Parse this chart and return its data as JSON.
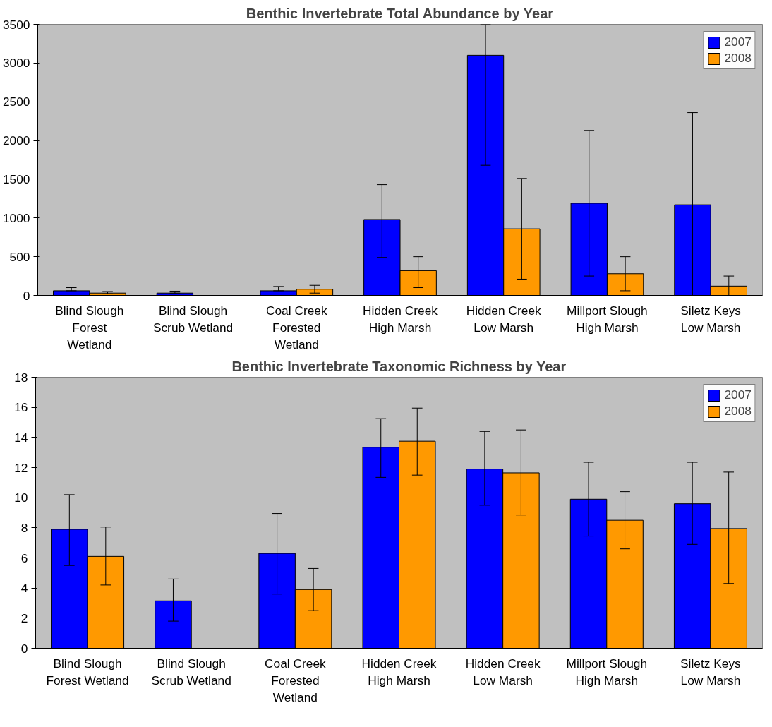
{
  "chart_data": [
    {
      "type": "bar",
      "title": "Benthic Invertebrate Total Abundance by Year",
      "categories": [
        "Blind Slough\nForest\nWetland",
        "Blind Slough\nScrub Wetland",
        "Coal Creek\nForested\nWetland",
        "Hidden Creek\nHigh Marsh",
        "Hidden Creek\nLow Marsh",
        "Millport Slough\nHigh Marsh",
        "Siletz Keys\nLow Marsh"
      ],
      "series": [
        {
          "name": "2007",
          "color": "#0000ff",
          "values": [
            60,
            30,
            60,
            980,
            3100,
            1190,
            1170
          ],
          "errors": [
            [
              60,
              100
            ],
            [
              30,
              55
            ],
            [
              60,
              115
            ],
            [
              490,
              1430
            ],
            [
              1680,
              3500
            ],
            [
              250,
              2130
            ],
            [
              0,
              2360
            ]
          ]
        },
        {
          "name": "2008",
          "color": "#ff9900",
          "values": [
            30,
            null,
            80,
            320,
            860,
            280,
            120
          ],
          "errors": [
            [
              20,
              50
            ],
            null,
            [
              30,
              130
            ],
            [
              100,
              500
            ],
            [
              210,
              1510
            ],
            [
              60,
              500
            ],
            [
              0,
              250
            ]
          ]
        }
      ],
      "ylim": [
        0,
        3500
      ],
      "yticks": [
        0,
        500,
        1000,
        1500,
        2000,
        2500,
        3000,
        3500
      ],
      "legend": "top right"
    },
    {
      "type": "bar",
      "title": "Benthic Invertebrate Taxonomic Richness by Year",
      "categories": [
        "Blind Slough\nForest Wetland",
        "Blind Slough\nScrub Wetland",
        "Coal Creek\nForested\nWetland",
        "Hidden Creek\nHigh Marsh",
        "Hidden Creek\nLow Marsh",
        "Millport Slough\nHigh Marsh",
        "Siletz Keys\nLow Marsh"
      ],
      "series": [
        {
          "name": "2007",
          "color": "#0000ff",
          "values": [
            7.9,
            3.15,
            6.3,
            13.35,
            11.9,
            9.9,
            9.6
          ],
          "errors": [
            [
              5.5,
              10.2
            ],
            [
              1.8,
              4.6
            ],
            [
              3.6,
              8.95
            ],
            [
              11.35,
              15.25
            ],
            [
              9.5,
              14.4
            ],
            [
              7.45,
              12.35
            ],
            [
              6.9,
              12.35
            ]
          ]
        },
        {
          "name": "2008",
          "color": "#ff9900",
          "values": [
            6.1,
            null,
            3.9,
            13.75,
            11.65,
            8.5,
            7.95
          ],
          "errors": [
            [
              4.2,
              8.05
            ],
            null,
            [
              2.5,
              5.3
            ],
            [
              11.5,
              15.95
            ],
            [
              8.85,
              14.5
            ],
            [
              6.6,
              10.4
            ],
            [
              4.3,
              11.7
            ]
          ]
        }
      ],
      "ylim": [
        0,
        18
      ],
      "yticks": [
        0,
        2,
        4,
        6,
        8,
        10,
        12,
        14,
        16,
        18
      ],
      "legend": "top right"
    }
  ]
}
